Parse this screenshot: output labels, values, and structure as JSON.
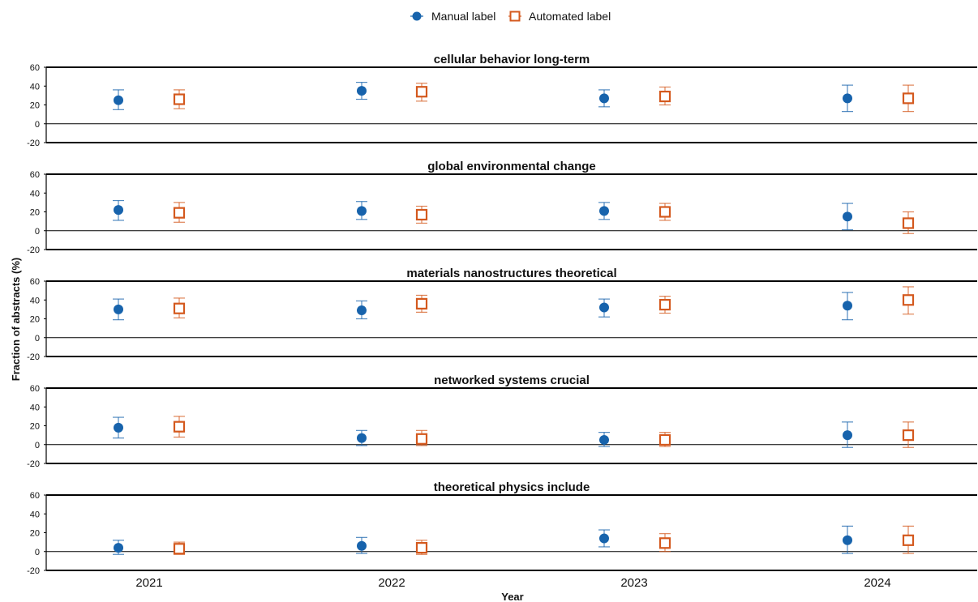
{
  "chart_data": {
    "type": "scatter",
    "xlabel": "Year",
    "ylabel": "Fraction of abstracts (%)",
    "categories": [
      "2021",
      "2022",
      "2023",
      "2024"
    ],
    "ylim": [
      -20,
      60
    ],
    "yticks": [
      "60",
      "40",
      "20",
      "0",
      "-20"
    ],
    "grid": false,
    "legend_position": "top-center",
    "colors": {
      "manual": "#1763ac",
      "automated": "#d4591e"
    },
    "series": [
      {
        "name": "Manual label",
        "marker": "filled-circle"
      },
      {
        "name": "Automated label",
        "marker": "open-square"
      }
    ],
    "panels": [
      {
        "title": "cellular behavior long-term",
        "manual": [
          {
            "y": 25,
            "lo": 15,
            "hi": 36
          },
          {
            "y": 35,
            "lo": 26,
            "hi": 44
          },
          {
            "y": 27,
            "lo": 18,
            "hi": 36
          },
          {
            "y": 27,
            "lo": 13,
            "hi": 41
          }
        ],
        "automated": [
          {
            "y": 26,
            "lo": 16,
            "hi": 36
          },
          {
            "y": 34,
            "lo": 24,
            "hi": 43
          },
          {
            "y": 29,
            "lo": 20,
            "hi": 39
          },
          {
            "y": 27,
            "lo": 13,
            "hi": 41
          }
        ]
      },
      {
        "title": "global environmental change",
        "manual": [
          {
            "y": 22,
            "lo": 11,
            "hi": 32
          },
          {
            "y": 21,
            "lo": 12,
            "hi": 31
          },
          {
            "y": 21,
            "lo": 12,
            "hi": 30
          },
          {
            "y": 15,
            "lo": 1,
            "hi": 29
          }
        ],
        "automated": [
          {
            "y": 19,
            "lo": 9,
            "hi": 30
          },
          {
            "y": 17,
            "lo": 8,
            "hi": 26
          },
          {
            "y": 20,
            "lo": 11,
            "hi": 29
          },
          {
            "y": 8,
            "lo": -3,
            "hi": 20
          }
        ]
      },
      {
        "title": "materials nanostructures theoretical",
        "manual": [
          {
            "y": 30,
            "lo": 19,
            "hi": 41
          },
          {
            "y": 29,
            "lo": 20,
            "hi": 39
          },
          {
            "y": 32,
            "lo": 22,
            "hi": 41
          },
          {
            "y": 34,
            "lo": 19,
            "hi": 48
          }
        ],
        "automated": [
          {
            "y": 31,
            "lo": 21,
            "hi": 42
          },
          {
            "y": 36,
            "lo": 27,
            "hi": 45
          },
          {
            "y": 35,
            "lo": 26,
            "hi": 44
          },
          {
            "y": 40,
            "lo": 25,
            "hi": 54
          }
        ]
      },
      {
        "title": "networked systems crucial",
        "manual": [
          {
            "y": 18,
            "lo": 7,
            "hi": 29
          },
          {
            "y": 7,
            "lo": -1,
            "hi": 15
          },
          {
            "y": 5,
            "lo": -2,
            "hi": 13
          },
          {
            "y": 10,
            "lo": -3,
            "hi": 24
          }
        ],
        "automated": [
          {
            "y": 19,
            "lo": 8,
            "hi": 30
          },
          {
            "y": 6,
            "lo": -1,
            "hi": 15
          },
          {
            "y": 5,
            "lo": -2,
            "hi": 13
          },
          {
            "y": 10,
            "lo": -3,
            "hi": 24
          }
        ]
      },
      {
        "title": "theoretical physics include",
        "manual": [
          {
            "y": 4,
            "lo": -3,
            "hi": 12
          },
          {
            "y": 6,
            "lo": -2,
            "hi": 15
          },
          {
            "y": 14,
            "lo": 5,
            "hi": 23
          },
          {
            "y": 12,
            "lo": -2,
            "hi": 27
          }
        ],
        "automated": [
          {
            "y": 3,
            "lo": -3,
            "hi": 10
          },
          {
            "y": 4,
            "lo": -3,
            "hi": 12
          },
          {
            "y": 9,
            "lo": 0,
            "hi": 19
          },
          {
            "y": 12,
            "lo": -2,
            "hi": 27
          }
        ]
      }
    ]
  }
}
